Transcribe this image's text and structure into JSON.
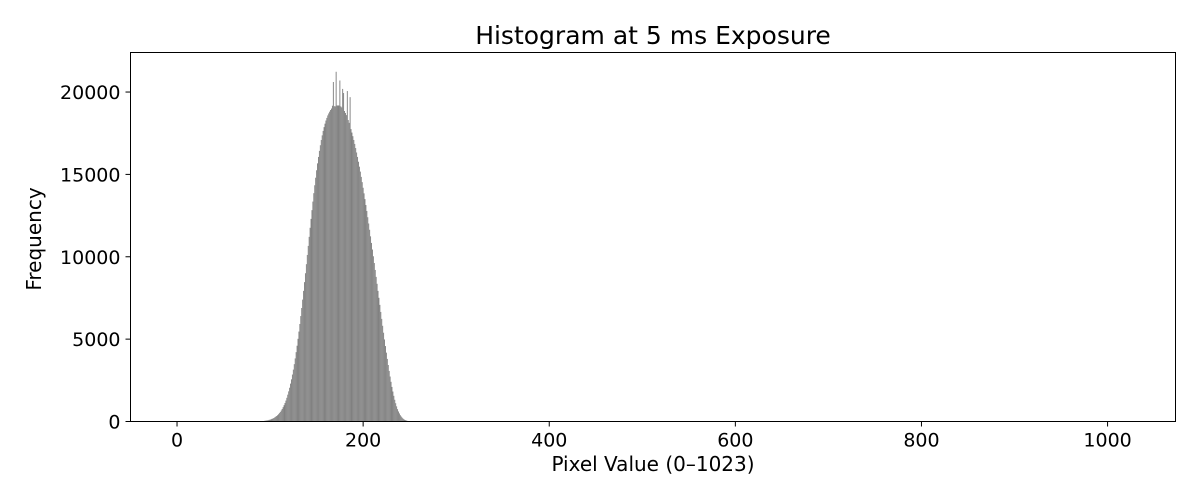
{
  "chart_data": {
    "type": "bar",
    "title": "Histogram at 5 ms Exposure",
    "xlabel": "Pixel Value (0–1023)",
    "ylabel": "Frequency",
    "xlim": [
      -50,
      1073
    ],
    "ylim": [
      0,
      22400
    ],
    "x_ticks": [
      0,
      200,
      400,
      600,
      800,
      1000
    ],
    "y_ticks": [
      0,
      5000,
      10000,
      15000,
      20000
    ],
    "x_tick_labels": [
      "0",
      "200",
      "400",
      "600",
      "800",
      "1000"
    ],
    "y_tick_labels": [
      "0",
      "5000",
      "10000",
      "15000",
      "20000"
    ],
    "grid": false,
    "bar_color": "#808080",
    "bin_width": 1,
    "bins_start": 88,
    "values": [
      10,
      10,
      20,
      20,
      30,
      30,
      40,
      50,
      60,
      70,
      80,
      100,
      110,
      130,
      160,
      180,
      210,
      250,
      290,
      330,
      380,
      440,
      510,
      580,
      670,
      760,
      870,
      990,
      1120,
      1270,
      1440,
      1630,
      1830,
      2050,
      2300,
      2560,
      2850,
      3150,
      3480,
      3830,
      4210,
      4600,
      5020,
      5460,
      5920,
      6400,
      6890,
      7400,
      7930,
      8460,
      9000,
      9550,
      10110,
      10660,
      11210,
      11760,
      12300,
      12830,
      13350,
      13860,
      14340,
      14800,
      15250,
      15670,
      16060,
      16430,
      16770,
      17090,
      17370,
      17640,
      17870,
      18080,
      18270,
      18430,
      18580,
      18700,
      18810,
      18910,
      19000,
      19170,
      20610,
      19140,
      19130,
      21230,
      19180,
      19190,
      19180,
      20700,
      19130,
      19070,
      20190,
      19940,
      18850,
      18730,
      18600,
      20060,
      18300,
      18130,
      19690,
      17750,
      17540,
      17320,
      17090,
      16850,
      16600,
      16330,
      16060,
      15770,
      15470,
      15170,
      14850,
      14530,
      14190,
      13850,
      13500,
      13140,
      12780,
      12400,
      12020,
      11640,
      11240,
      10840,
      10440,
      10030,
      9620,
      9200,
      8780,
      8360,
      7930,
      7510,
      7080,
      6650,
      6230,
      5810,
      5390,
      4980,
      4580,
      4180,
      3800,
      3430,
      3070,
      2730,
      2410,
      2100,
      1820,
      1560,
      1320,
      1110,
      920,
      750,
      610,
      490,
      380,
      300,
      230,
      170,
      130,
      90,
      70,
      50,
      30,
      20,
      10,
      10
    ]
  }
}
